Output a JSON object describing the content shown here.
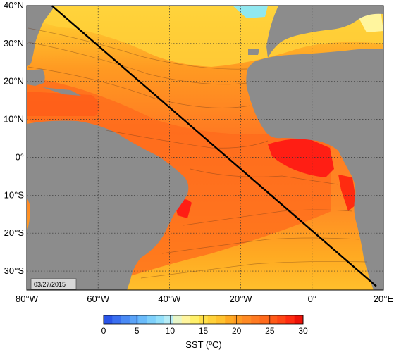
{
  "map": {
    "date": "03/27/2015",
    "lat_labels": [
      "40°N",
      "30°N",
      "20°N",
      "10°N",
      "0°",
      "10°S",
      "20°S",
      "30°S"
    ],
    "lon_labels": [
      "80°W",
      "60°W",
      "40°W",
      "20°W",
      "0°",
      "20°E"
    ],
    "lat_range": [
      40,
      -35
    ],
    "lon_range": [
      -80,
      20
    ],
    "transect": {
      "start": {
        "lon": -73,
        "lat": 40
      },
      "end": {
        "lon": 18,
        "lat": -34
      }
    },
    "colors": {
      "land": "#8c8c8c",
      "warm_pool": "#ff1e14",
      "ocean_high": "#ff7a22",
      "ocean_mid": "#ffaa22",
      "ocean_cool": "#ffe04a",
      "ocean_cold": "#90e8f0"
    }
  },
  "colorbar": {
    "title": "SST (ºC)",
    "ticks": [
      "0",
      "5",
      "10",
      "15",
      "20",
      "25",
      "30"
    ],
    "min": 0,
    "max": 30,
    "colors": [
      "#2a55e8",
      "#3a6ff0",
      "#4a8af5",
      "#5aa3f8",
      "#6abbfa",
      "#7ed0fb",
      "#94e0fa",
      "#b6ecf6",
      "#e8f6c8",
      "#fff59e",
      "#fff06a",
      "#ffe04a",
      "#ffd13a",
      "#ffc22e",
      "#ffaa22",
      "#ff9a22",
      "#ff8a24",
      "#ff7a22",
      "#ff6a1c",
      "#ff5a18",
      "#ff4614",
      "#ff2b10",
      "#ee1208"
    ]
  }
}
